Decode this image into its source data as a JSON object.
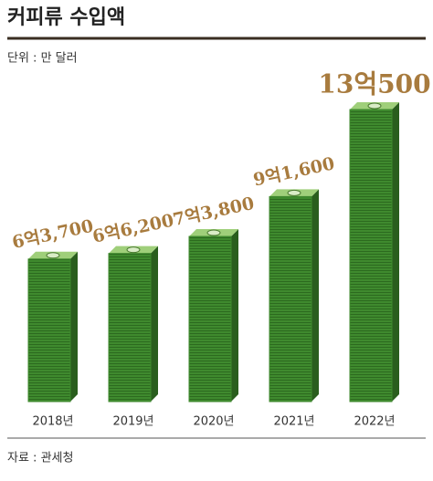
{
  "chart_data": {
    "type": "bar",
    "title": "커피류 수입액",
    "subtitle": "단위 : 만 달러",
    "categories": [
      "2018년",
      "2019년",
      "2020년",
      "2021년",
      "2022년"
    ],
    "values": [
      63700,
      66200,
      73800,
      91600,
      130500
    ],
    "value_labels": [
      "6억3,700",
      "6억6,200",
      "7억3,800",
      "9억1,600",
      "13억500"
    ],
    "color": "#3f8a2e",
    "label_color": "#a87b3e",
    "source": "자료 : 관세청"
  }
}
